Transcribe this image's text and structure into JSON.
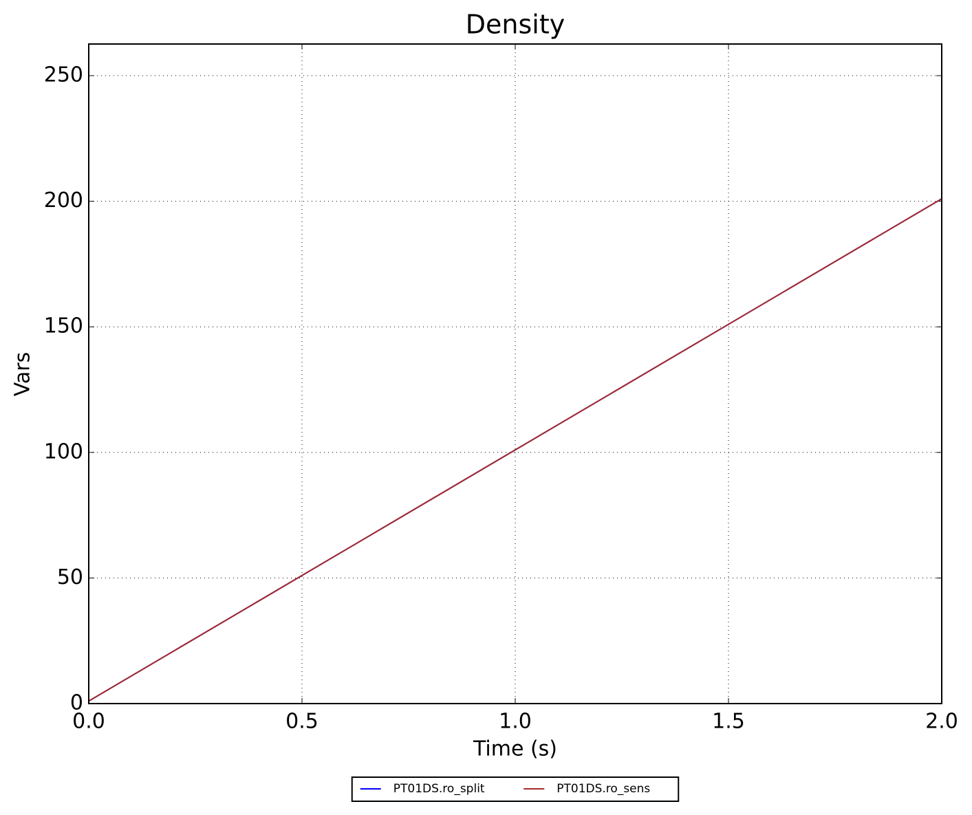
{
  "chart_data": {
    "type": "line",
    "title": "Density",
    "x_label": "Time (s)",
    "y_label": "Vars",
    "x": [
      0,
      0.5,
      1,
      1.5,
      2
    ],
    "series": [
      {
        "name": "PT01DS.ro_split",
        "color": "#0000ff",
        "values": [
          1,
          51,
          101,
          151,
          201
        ]
      },
      {
        "name": "PT01DS.ro_sens",
        "color": "#a52a2a",
        "values": [
          1,
          51,
          101,
          151,
          201
        ]
      }
    ],
    "xlim": [
      0,
      2
    ],
    "ylim": [
      0,
      262.6
    ],
    "xticks": [
      {
        "value": 0,
        "label": "0.0"
      },
      {
        "value": 0.5,
        "label": "0.5"
      },
      {
        "value": 1,
        "label": "1.0"
      },
      {
        "value": 1.5,
        "label": "1.5"
      },
      {
        "value": 2,
        "label": "2.0"
      }
    ],
    "yticks": [
      0,
      50,
      100,
      150,
      200,
      250
    ],
    "grid": true,
    "legend": "bottom"
  }
}
